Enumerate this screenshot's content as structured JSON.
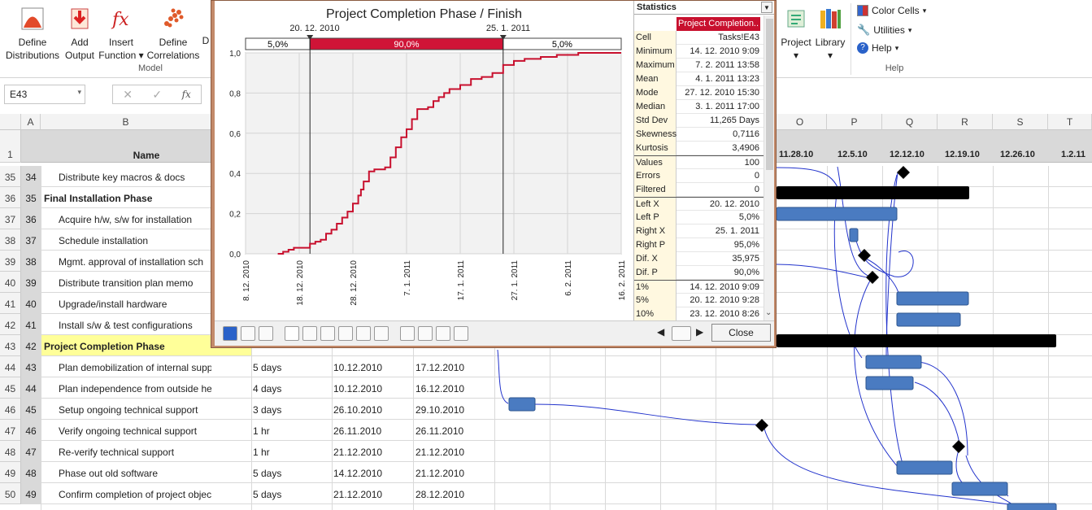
{
  "ribbon": {
    "buttons": [
      {
        "l1": "Define",
        "l2": "Distributions"
      },
      {
        "l1": "Add",
        "l2": "Output"
      },
      {
        "l1": "Insert",
        "l2": "Function ▾"
      },
      {
        "l1": "Define",
        "l2": "Correlations"
      }
    ],
    "truncated_label": "D",
    "group_model": "Model",
    "project": "Project",
    "library": "Library",
    "color_cells": "Color Cells",
    "utilities": "Utilities",
    "help": "Help",
    "group_help": "Help"
  },
  "namebox": "E43",
  "fx": "fx",
  "columns": {
    "A": "A",
    "B": "B",
    "O": "O",
    "P": "P",
    "Q": "Q",
    "R": "R",
    "S": "S",
    "T": "T"
  },
  "header_row": {
    "num": "1",
    "name": "Name"
  },
  "gantt_dates": [
    "11.28.10",
    "12.5.10",
    "12.12.10",
    "12.19.10",
    "12.26.10",
    "1.2.11"
  ],
  "rows": [
    {
      "r": "35",
      "a": "34",
      "b": "Distribute key macros & docs",
      "bold": false,
      "dur": "",
      "start": "",
      "end": ""
    },
    {
      "r": "36",
      "a": "35",
      "b": "Final Installation Phase",
      "bold": true,
      "dur": "",
      "start": "",
      "end": ""
    },
    {
      "r": "37",
      "a": "36",
      "b": "Acquire h/w, s/w for installation",
      "bold": false,
      "dur": "",
      "start": "",
      "end": ""
    },
    {
      "r": "38",
      "a": "37",
      "b": "Schedule installation",
      "bold": false,
      "dur": "",
      "start": "",
      "end": ""
    },
    {
      "r": "39",
      "a": "38",
      "b": "Mgmt. approval of installation sch",
      "bold": false,
      "dur": "",
      "start": "",
      "end": ""
    },
    {
      "r": "40",
      "a": "39",
      "b": "Distribute transition plan memo",
      "bold": false,
      "dur": "",
      "start": "",
      "end": ""
    },
    {
      "r": "41",
      "a": "40",
      "b": "Upgrade/install hardware",
      "bold": false,
      "dur": "",
      "start": "",
      "end": ""
    },
    {
      "r": "42",
      "a": "41",
      "b": "Install s/w & test configurations",
      "bold": false,
      "dur": "",
      "start": "",
      "end": ""
    },
    {
      "r": "43",
      "a": "42",
      "b": "Project Completion Phase",
      "bold": true,
      "dur": "",
      "start": "",
      "end": ""
    },
    {
      "r": "44",
      "a": "43",
      "b": "Plan demobilization of internal support",
      "bold": false,
      "dur": "5 days",
      "start": "10.12.2010",
      "end": "17.12.2010"
    },
    {
      "r": "45",
      "a": "44",
      "b": "Plan independence from outside help",
      "bold": false,
      "dur": "4 days",
      "start": "10.12.2010",
      "end": "16.12.2010"
    },
    {
      "r": "46",
      "a": "45",
      "b": "Setup ongoing technical support",
      "bold": false,
      "dur": "3 days",
      "start": "26.10.2010",
      "end": "29.10.2010"
    },
    {
      "r": "47",
      "a": "46",
      "b": "Verify ongoing technical support",
      "bold": false,
      "dur": "1 hr",
      "start": "26.11.2010",
      "end": "26.11.2010"
    },
    {
      "r": "48",
      "a": "47",
      "b": "Re-verify technical support",
      "bold": false,
      "dur": "1 hr",
      "start": "21.12.2010",
      "end": "21.12.2010"
    },
    {
      "r": "49",
      "a": "48",
      "b": "Phase out old software",
      "bold": false,
      "dur": "5 days",
      "start": "14.12.2010",
      "end": "21.12.2010"
    },
    {
      "r": "50",
      "a": "49",
      "b": "Confirm completion of project objectives",
      "bold": false,
      "dur": "5 days",
      "start": "21.12.2010",
      "end": "28.12.2010"
    }
  ],
  "dialog": {
    "chart_title": "Project Completion Phase / Finish",
    "left_marker": "20. 12. 2010",
    "right_marker": "25. 1. 2011",
    "band_left": "5,0%",
    "band_mid": "90,0%",
    "band_right": "5,0%",
    "close": "Close",
    "stats_title": "Statistics",
    "stats_header": "Project Completion..",
    "stats": [
      {
        "k": "Cell",
        "v": "Tasks!E43"
      },
      {
        "k": "Minimum",
        "v": "14. 12. 2010 9:09"
      },
      {
        "k": "Maximum",
        "v": "7. 2. 2011 13:58"
      },
      {
        "k": "Mean",
        "v": "4. 1. 2011 13:23"
      },
      {
        "k": "Mode",
        "v": "27. 12. 2010 15:30"
      },
      {
        "k": "Median",
        "v": "3. 1. 2011 17:00"
      },
      {
        "k": "Std Dev",
        "v": "11,265 Days"
      },
      {
        "k": "Skewness",
        "v": "0,7116"
      },
      {
        "k": "Kurtosis",
        "v": "3,4906"
      },
      {
        "k": "Values",
        "v": "100"
      },
      {
        "k": "Errors",
        "v": "0"
      },
      {
        "k": "Filtered",
        "v": "0"
      },
      {
        "k": "Left X",
        "v": "20. 12. 2010"
      },
      {
        "k": "Left P",
        "v": "5,0%"
      },
      {
        "k": "Right X",
        "v": "25. 1. 2011"
      },
      {
        "k": "Right P",
        "v": "95,0%"
      },
      {
        "k": "Dif. X",
        "v": "35,975"
      },
      {
        "k": "Dif. P",
        "v": "90,0%"
      },
      {
        "k": "1%",
        "v": "14. 12. 2010 9:09"
      },
      {
        "k": "5%",
        "v": "20. 12. 2010 9:28"
      },
      {
        "k": "10%",
        "v": "23. 12. 2010 8:26"
      }
    ]
  },
  "chart_data": {
    "type": "line",
    "title": "Project Completion Phase / Finish",
    "x_ticks": [
      "8. 12. 2010",
      "18. 12. 2010",
      "28. 12. 2010",
      "7. 1. 2011",
      "17. 1. 2011",
      "27. 1. 2011",
      "6. 2. 2011",
      "16. 2. 2011"
    ],
    "y_ticks": [
      "0,0",
      "0,2",
      "0,4",
      "0,6",
      "0,8",
      "1,0"
    ],
    "ylim": [
      0,
      1
    ],
    "series": [
      {
        "values_days_from_8dec": [
          [
            6,
            0
          ],
          [
            7,
            0.01
          ],
          [
            8,
            0.02
          ],
          [
            9,
            0.03
          ],
          [
            10,
            0.03
          ],
          [
            12,
            0.05
          ],
          [
            13,
            0.06
          ],
          [
            14,
            0.07
          ],
          [
            15,
            0.1
          ],
          [
            16,
            0.12
          ],
          [
            17,
            0.15
          ],
          [
            18,
            0.18
          ],
          [
            19,
            0.21
          ],
          [
            20,
            0.25
          ],
          [
            21,
            0.29
          ],
          [
            21.5,
            0.32
          ],
          [
            22,
            0.36
          ],
          [
            23,
            0.41
          ],
          [
            24,
            0.42
          ],
          [
            26,
            0.43
          ],
          [
            27,
            0.48
          ],
          [
            28,
            0.53
          ],
          [
            29,
            0.58
          ],
          [
            30,
            0.62
          ],
          [
            31,
            0.67
          ],
          [
            32,
            0.72
          ],
          [
            34,
            0.73
          ],
          [
            35,
            0.76
          ],
          [
            36,
            0.78
          ],
          [
            37,
            0.8
          ],
          [
            38,
            0.82
          ],
          [
            40,
            0.84
          ],
          [
            42,
            0.87
          ],
          [
            44,
            0.88
          ],
          [
            46,
            0.9
          ],
          [
            48,
            0.94
          ],
          [
            50,
            0.96
          ],
          [
            52,
            0.97
          ],
          [
            55,
            0.98
          ],
          [
            58,
            0.99
          ],
          [
            62,
            1.0
          ],
          [
            70,
            1.0
          ]
        ]
      }
    ]
  }
}
